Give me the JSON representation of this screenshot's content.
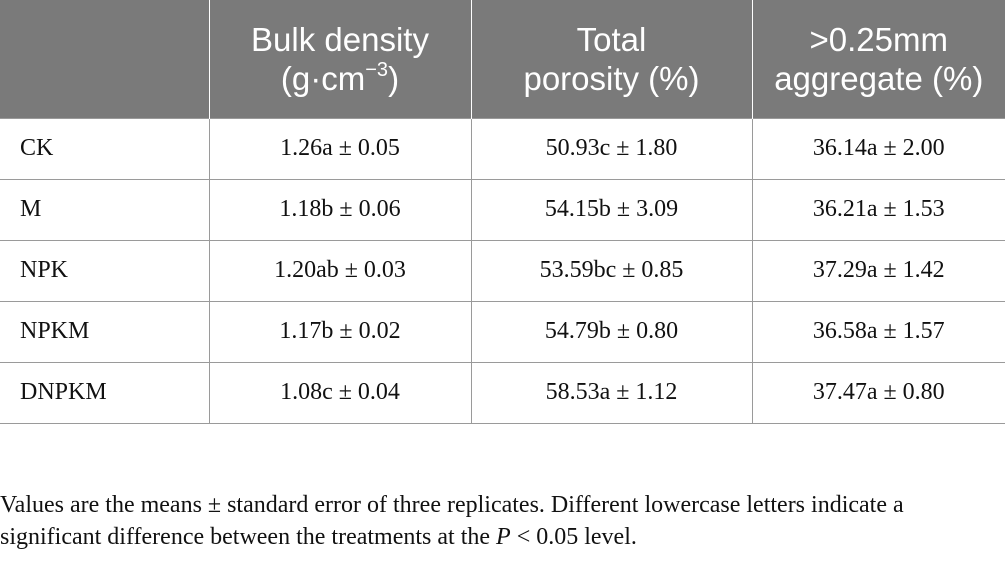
{
  "table": {
    "headers": [
      {
        "line1": "",
        "line2": ""
      },
      {
        "line1": "Bulk density",
        "line2": "(g·cm",
        "sup": "−3",
        "line2_end": ")"
      },
      {
        "line1": "Total",
        "line2": "porosity (%)"
      },
      {
        "line1": ">0.25mm",
        "line2": "aggregate (%)"
      }
    ],
    "rows": [
      {
        "treatment": "CK",
        "bulk_density": "1.26a ± 0.05",
        "total_porosity": "50.93c ± 1.80",
        "aggregate": "36.14a ± 2.00"
      },
      {
        "treatment": "M",
        "bulk_density": "1.18b ± 0.06",
        "total_porosity": "54.15b ± 3.09",
        "aggregate": "36.21a ± 1.53"
      },
      {
        "treatment": "NPK",
        "bulk_density": "1.20ab ± 0.03",
        "total_porosity": "53.59bc ± 0.85",
        "aggregate": "37.29a ± 1.42"
      },
      {
        "treatment": "NPKM",
        "bulk_density": "1.17b ± 0.02",
        "total_porosity": "54.79b ± 0.80",
        "aggregate": "36.58a ± 1.57"
      },
      {
        "treatment": "DNPKM",
        "bulk_density": "1.08c ± 0.04",
        "total_porosity": "58.53a ± 1.12",
        "aggregate": "37.47a ± 0.80"
      }
    ]
  },
  "footnote": {
    "text_before_italic": "Values are the means ± standard error of three replicates. Different lowercase letters indicate a significant difference between the treatments at the ",
    "italic": "P",
    "text_after_italic": " < 0.05 level."
  }
}
